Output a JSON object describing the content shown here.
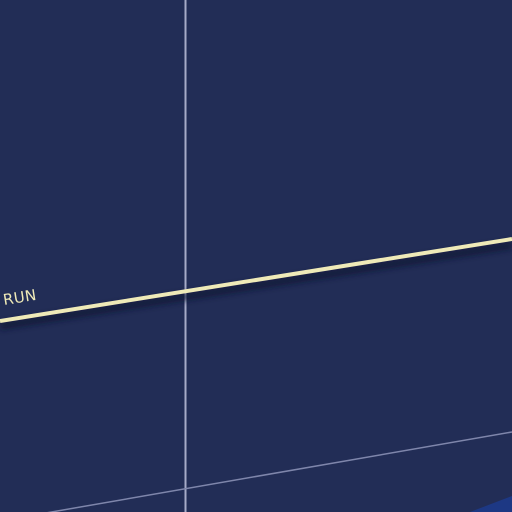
{
  "map": {
    "colors": {
      "background": "#222d56",
      "road_main": "#efeab8",
      "road_minor": "#a6abc8",
      "road_shadow": "#0f1533",
      "label_text": "#efeab8"
    },
    "roads": [
      {
        "id": "main-road",
        "label": "RUN"
      }
    ]
  }
}
